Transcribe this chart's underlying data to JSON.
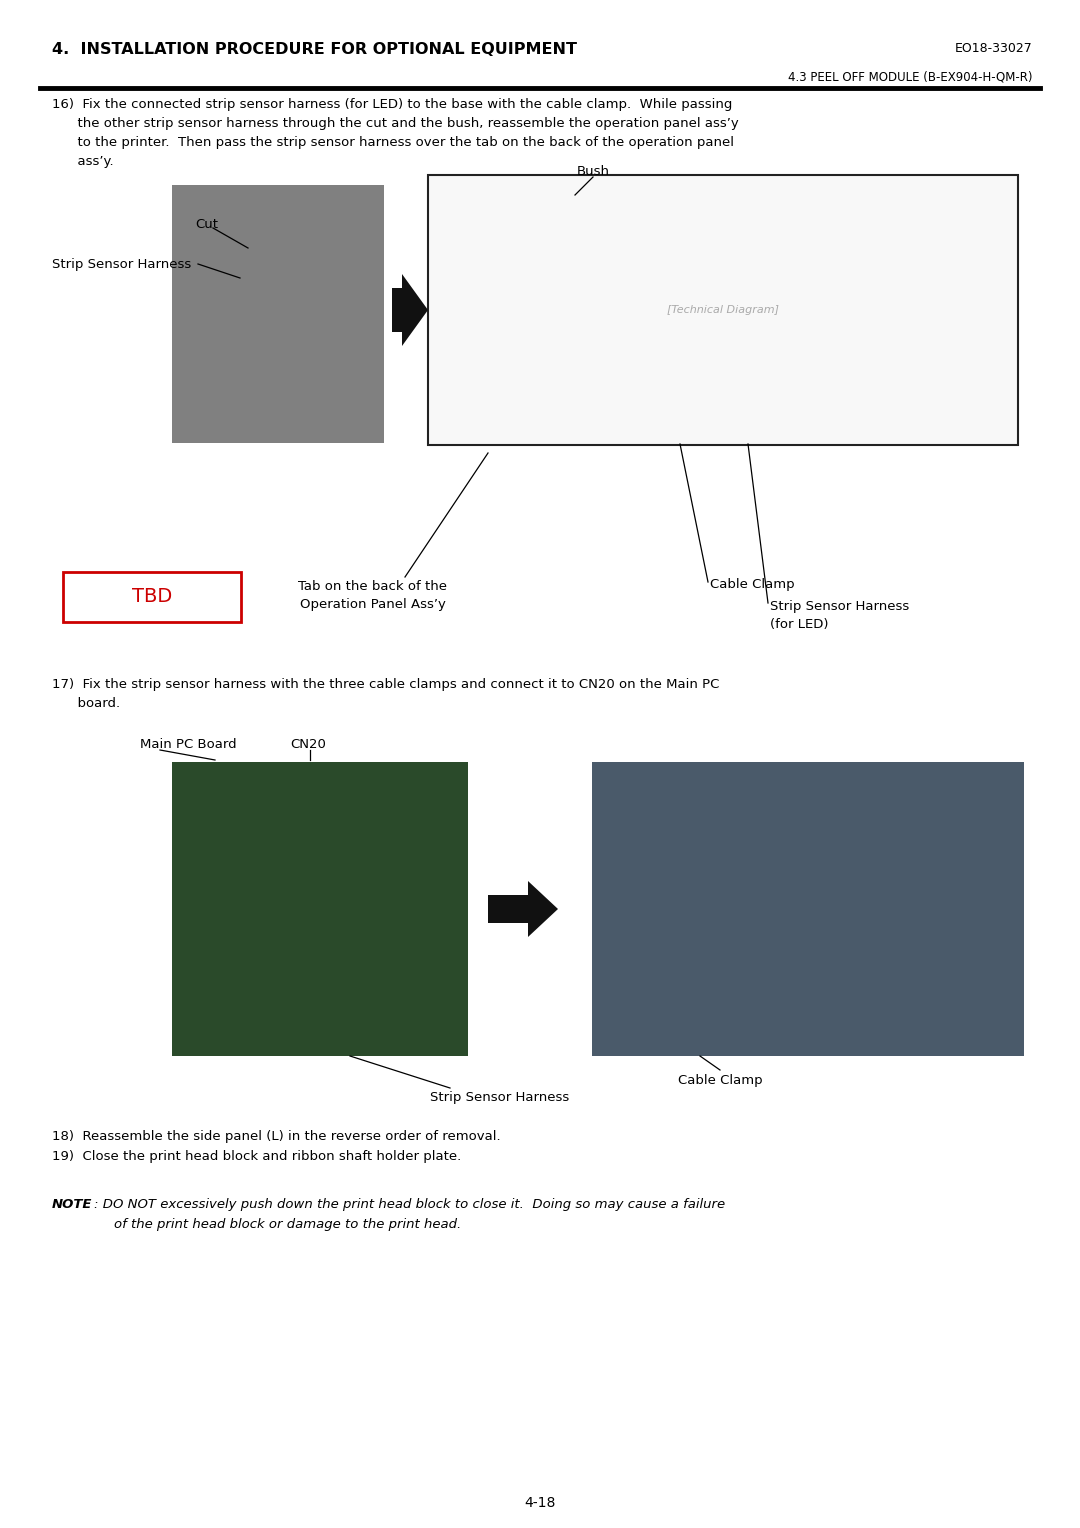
{
  "page_bg": "#ffffff",
  "header_title": "4.  INSTALLATION PROCEDURE FOR OPTIONAL EQUIPMENT",
  "header_right": "EO18-33027",
  "subheader_right": "4.3 PEEL OFF MODULE (B-EX904-H-QM-R)",
  "page_number": "4-18",
  "label_bush": "Bush",
  "label_cut": "Cut",
  "label_strip_sensor_harness": "Strip Sensor Harness",
  "label_tbd": "TBD",
  "label_tab_line1": "Tab on the back of the",
  "label_tab_line2": "Operation Panel Ass’y",
  "label_cable_clamp": "Cable Clamp",
  "label_strip_sensor_harness_led_line1": "Strip Sensor Harness",
  "label_strip_sensor_harness_led_line2": "(for LED)",
  "label_main_pc_board": "Main PC Board",
  "label_cn20": "CN20",
  "label_cable_clamp2": "Cable Clamp",
  "label_strip_sensor_harness2": "Strip Sensor Harness",
  "tbd_box_color": "#cc0000",
  "tbd_text_color": "#cc0000",
  "text_color": "#000000",
  "step16_lines": [
    "16)  Fix the connected strip sensor harness (for LED) to the base with the cable clamp.  While passing",
    "      the other strip sensor harness through the cut and the bush, reassemble the operation panel ass’y",
    "      to the printer.  Then pass the strip sensor harness over the tab on the back of the operation panel",
    "      ass’y."
  ],
  "step17_lines": [
    "17)  Fix the strip sensor harness with the three cable clamps and connect it to CN20 on the Main PC",
    "      board."
  ],
  "step18": "18)  Reassemble the side panel (L) in the reverse order of removal.",
  "step19": "19)  Close the print head block and ribbon shaft holder plate.",
  "note_bold": "NOTE",
  "note_rest_line1": ": DO NOT excessively push down the print head block to close it.  Doing so may cause a failure",
  "note_rest_line2": "of the print head block or damage to the print head.",
  "photo1_color": "#808080",
  "photo2_color": "#2a4a2a",
  "photo3_color": "#4a5a6a",
  "diag_color": "#f8f8f8"
}
